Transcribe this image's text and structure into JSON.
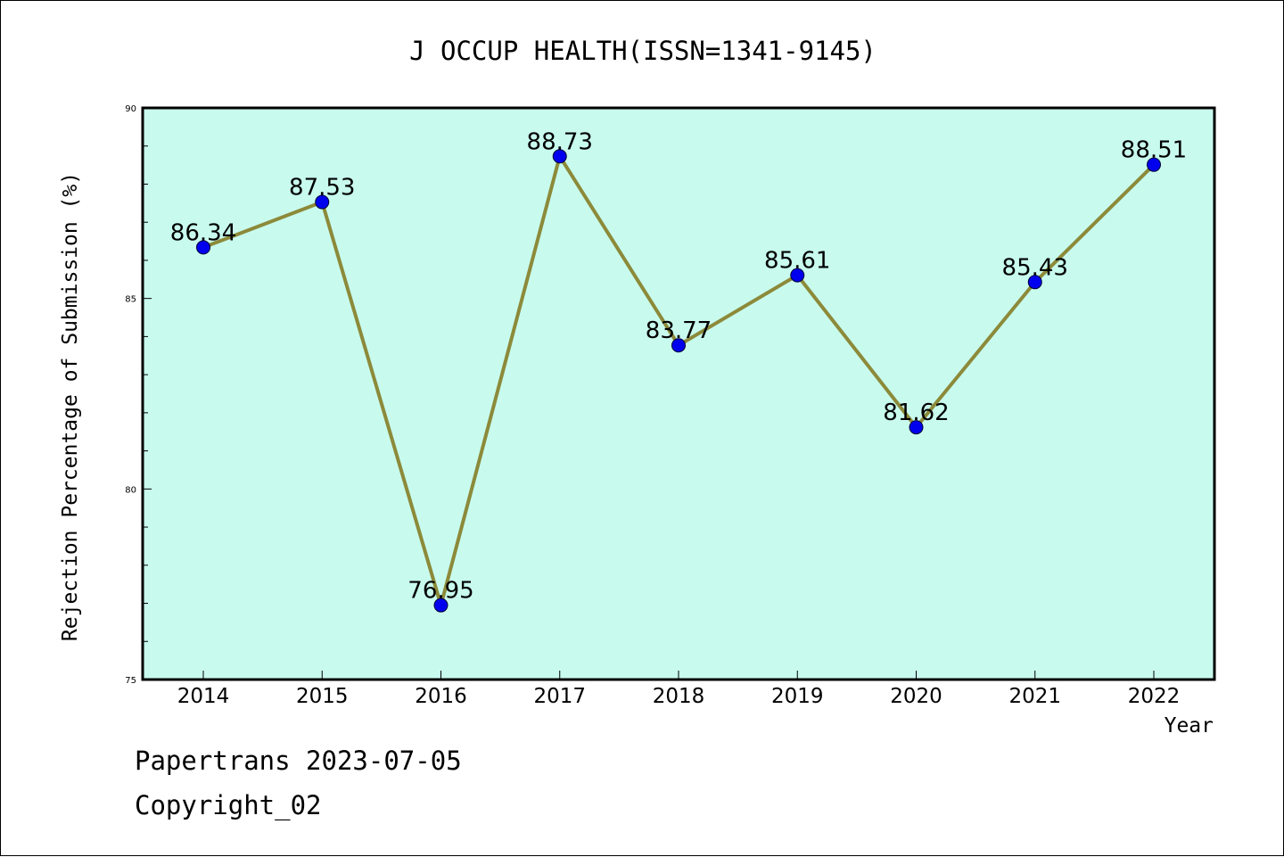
{
  "chart_data": {
    "type": "line",
    "title": "J OCCUP HEALTH(ISSN=1341-9145)",
    "xlabel": "Year",
    "ylabel": "Rejection Percentage of Submission (%)",
    "categories": [
      "2014",
      "2015",
      "2016",
      "2017",
      "2018",
      "2019",
      "2020",
      "2021",
      "2022"
    ],
    "series": [
      {
        "values": [
          86.34,
          87.53,
          76.95,
          88.73,
          83.77,
          85.61,
          81.62,
          85.43,
          88.51
        ],
        "labels": [
          "86.34",
          "87.53",
          "76.95",
          "88.73",
          "83.77",
          "85.61",
          "81.62",
          "85.43",
          "88.51"
        ]
      }
    ],
    "ylim": [
      75,
      90
    ],
    "yticks": [
      "75",
      "80",
      "85",
      "90"
    ],
    "grid": false,
    "legend": "none",
    "colors": {
      "plot_background": "#c8fbee",
      "line": "#8c8a3a",
      "marker": "#0000ee"
    }
  },
  "footer": {
    "line1": "Papertrans 2023-07-05",
    "line2": "Copyright_02"
  }
}
